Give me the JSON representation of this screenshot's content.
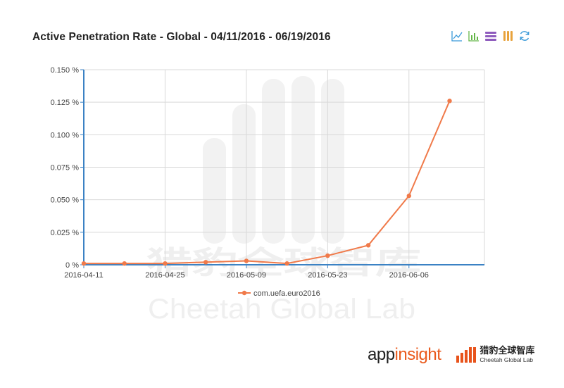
{
  "title": "Active Penetration Rate - Global - 04/11/2016 - 06/19/2016",
  "toolbar": {
    "icons": [
      "line-chart-icon",
      "bar-chart-icon",
      "stacked-icon",
      "tiled-icon",
      "refresh-icon"
    ],
    "color": "#3b9ad9",
    "purple": "#8e5bbd",
    "orange": "#e8a33d",
    "green": "#66b64a"
  },
  "chart_data": {
    "type": "line",
    "title": "Active Penetration Rate - Global - 04/11/2016 - 06/19/2016",
    "xlabel": "",
    "ylabel": "",
    "x_tick_labels": [
      "2016-04-11",
      "2016-04-25",
      "2016-05-09",
      "2016-05-23",
      "2016-06-06"
    ],
    "y_tick_labels": [
      "0 %",
      "0.025 %",
      "0.050 %",
      "0.075 %",
      "0.100 %",
      "0.125 %",
      "0.150 %"
    ],
    "ylim": [
      0,
      0.15
    ],
    "grid": true,
    "legend_position": "bottom",
    "series": [
      {
        "name": "com.uefa.euro2016",
        "color": "#f07a4a",
        "x": [
          "2016-04-11",
          "2016-04-18",
          "2016-04-25",
          "2016-05-02",
          "2016-05-09",
          "2016-05-16",
          "2016-05-23",
          "2016-05-30",
          "2016-06-06",
          "2016-06-13"
        ],
        "values": [
          0.001,
          0.001,
          0.001,
          0.002,
          0.003,
          0.001,
          0.007,
          0.015,
          0.053,
          0.126
        ]
      }
    ]
  },
  "watermark": {
    "chinese": "猎豹全球智库",
    "english": "Cheetah Global Lab"
  },
  "footer": {
    "appinsight_prefix": "app",
    "appinsight_suffix": "insight",
    "cheetah_cn": "猎豹全球智库",
    "cheetah_en": "Cheetah Global Lab"
  }
}
